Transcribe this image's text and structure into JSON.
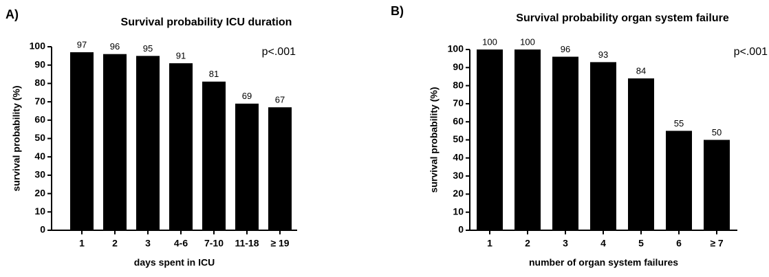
{
  "chart_data": [
    {
      "type": "bar",
      "panel_label": "A)",
      "title": "Survival probability ICU duration",
      "x_label": "days spent in  ICU",
      "y_label": "survival probability (%)",
      "annotation": "p<.001",
      "categories": [
        "1",
        "2",
        "3",
        "4-6",
        "7-10",
        "11-18",
        "≥ 19"
      ],
      "values": [
        97,
        96,
        95,
        91,
        81,
        69,
        67
      ],
      "color": "#000000",
      "ylim": [
        0,
        100
      ],
      "yticks": [
        0,
        10,
        20,
        30,
        40,
        50,
        60,
        70,
        80,
        90,
        100
      ]
    },
    {
      "type": "bar",
      "panel_label": "B)",
      "title": "Survival probability organ system failure",
      "x_label": "number of organ system failures",
      "y_label": "survival probability (%)",
      "annotation": "p<.001",
      "categories": [
        "1",
        "2",
        "3",
        "4",
        "5",
        "6",
        "≥ 7"
      ],
      "values": [
        100,
        100,
        96,
        93,
        84,
        55,
        50
      ],
      "color": "#000000",
      "ylim": [
        0,
        100
      ],
      "yticks": [
        0,
        10,
        20,
        30,
        40,
        50,
        60,
        70,
        80,
        90,
        100
      ]
    }
  ]
}
